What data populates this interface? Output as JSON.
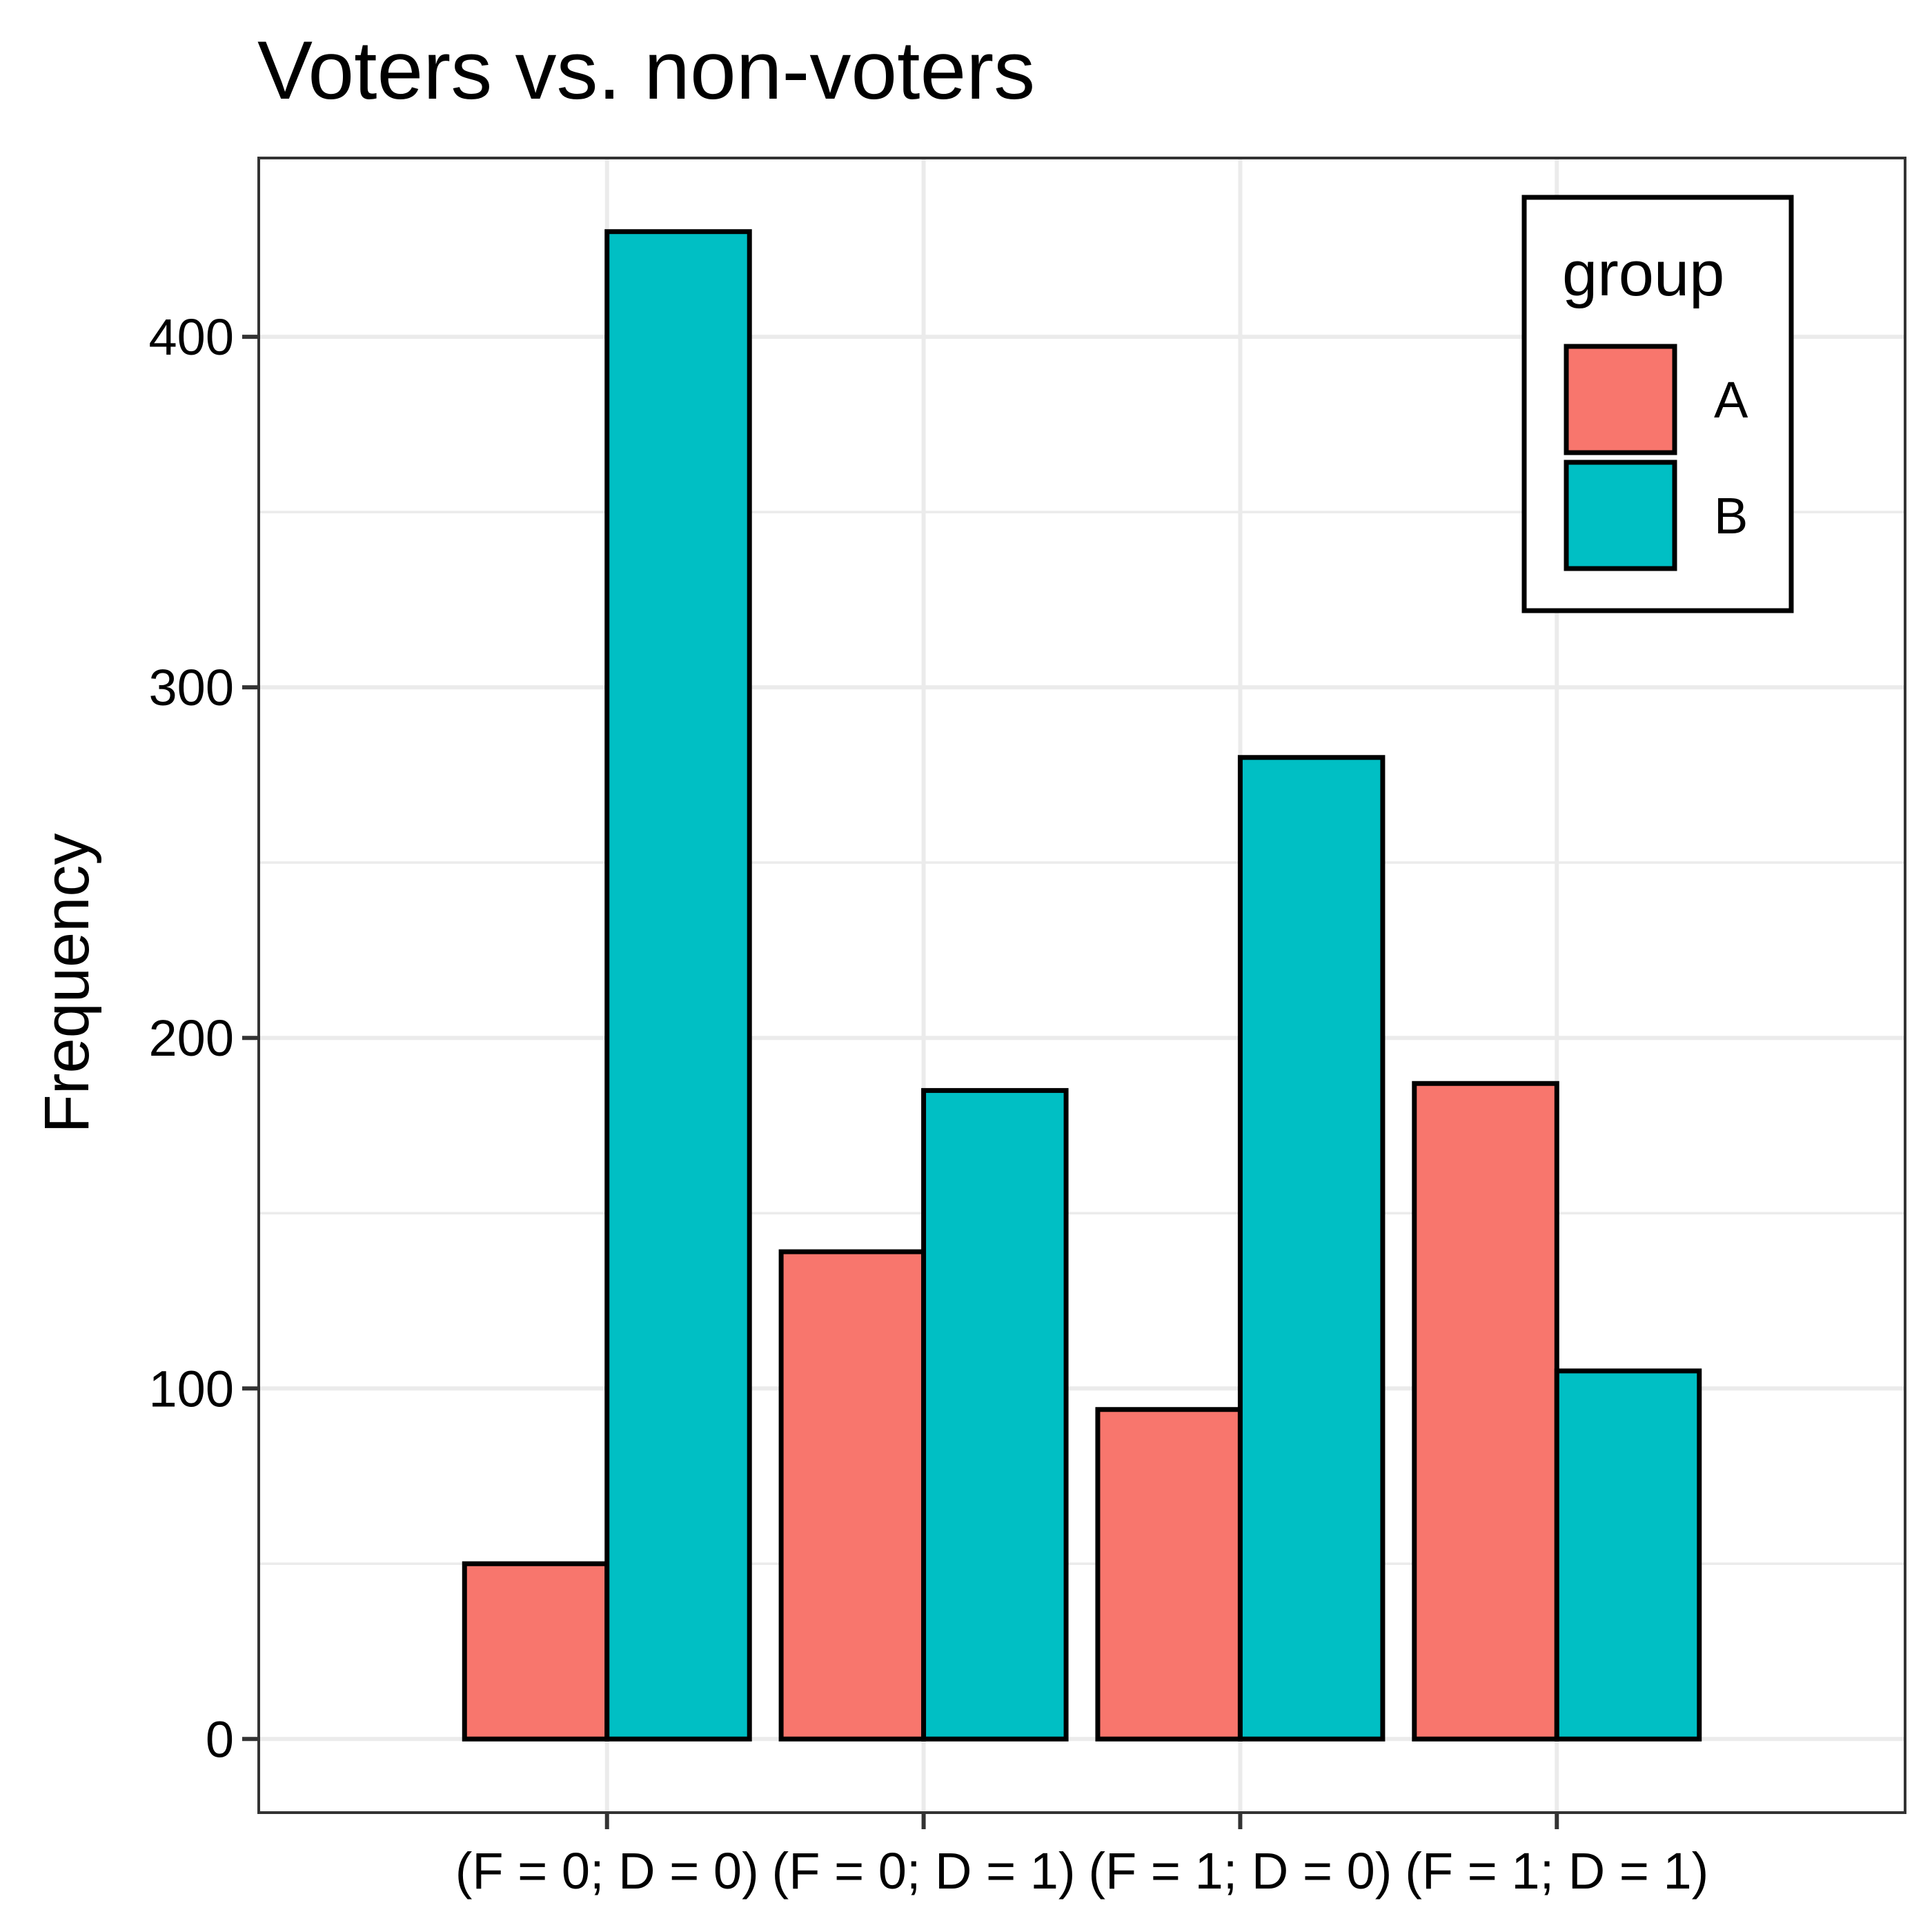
{
  "chart_data": {
    "type": "bar",
    "title": "Voters vs. non-voters",
    "xlabel": "",
    "ylabel": "Frequency",
    "categories": [
      "(F = 0; D = 0)",
      "(F = 0; D = 1)",
      "(F = 1; D = 0)",
      "(F = 1; D = 1)"
    ],
    "series": [
      {
        "name": "A",
        "color": "#F8766D",
        "values": [
          50,
          139,
          94,
          187
        ]
      },
      {
        "name": "B",
        "color": "#00BFC4",
        "values": [
          430,
          185,
          280,
          105
        ]
      }
    ],
    "ylim": [
      -21,
      451
    ],
    "yticks": [
      0,
      100,
      200,
      300,
      400
    ],
    "grid": true,
    "legend": {
      "title": "group",
      "position": "top-right",
      "entries": [
        "A",
        "B"
      ]
    }
  }
}
